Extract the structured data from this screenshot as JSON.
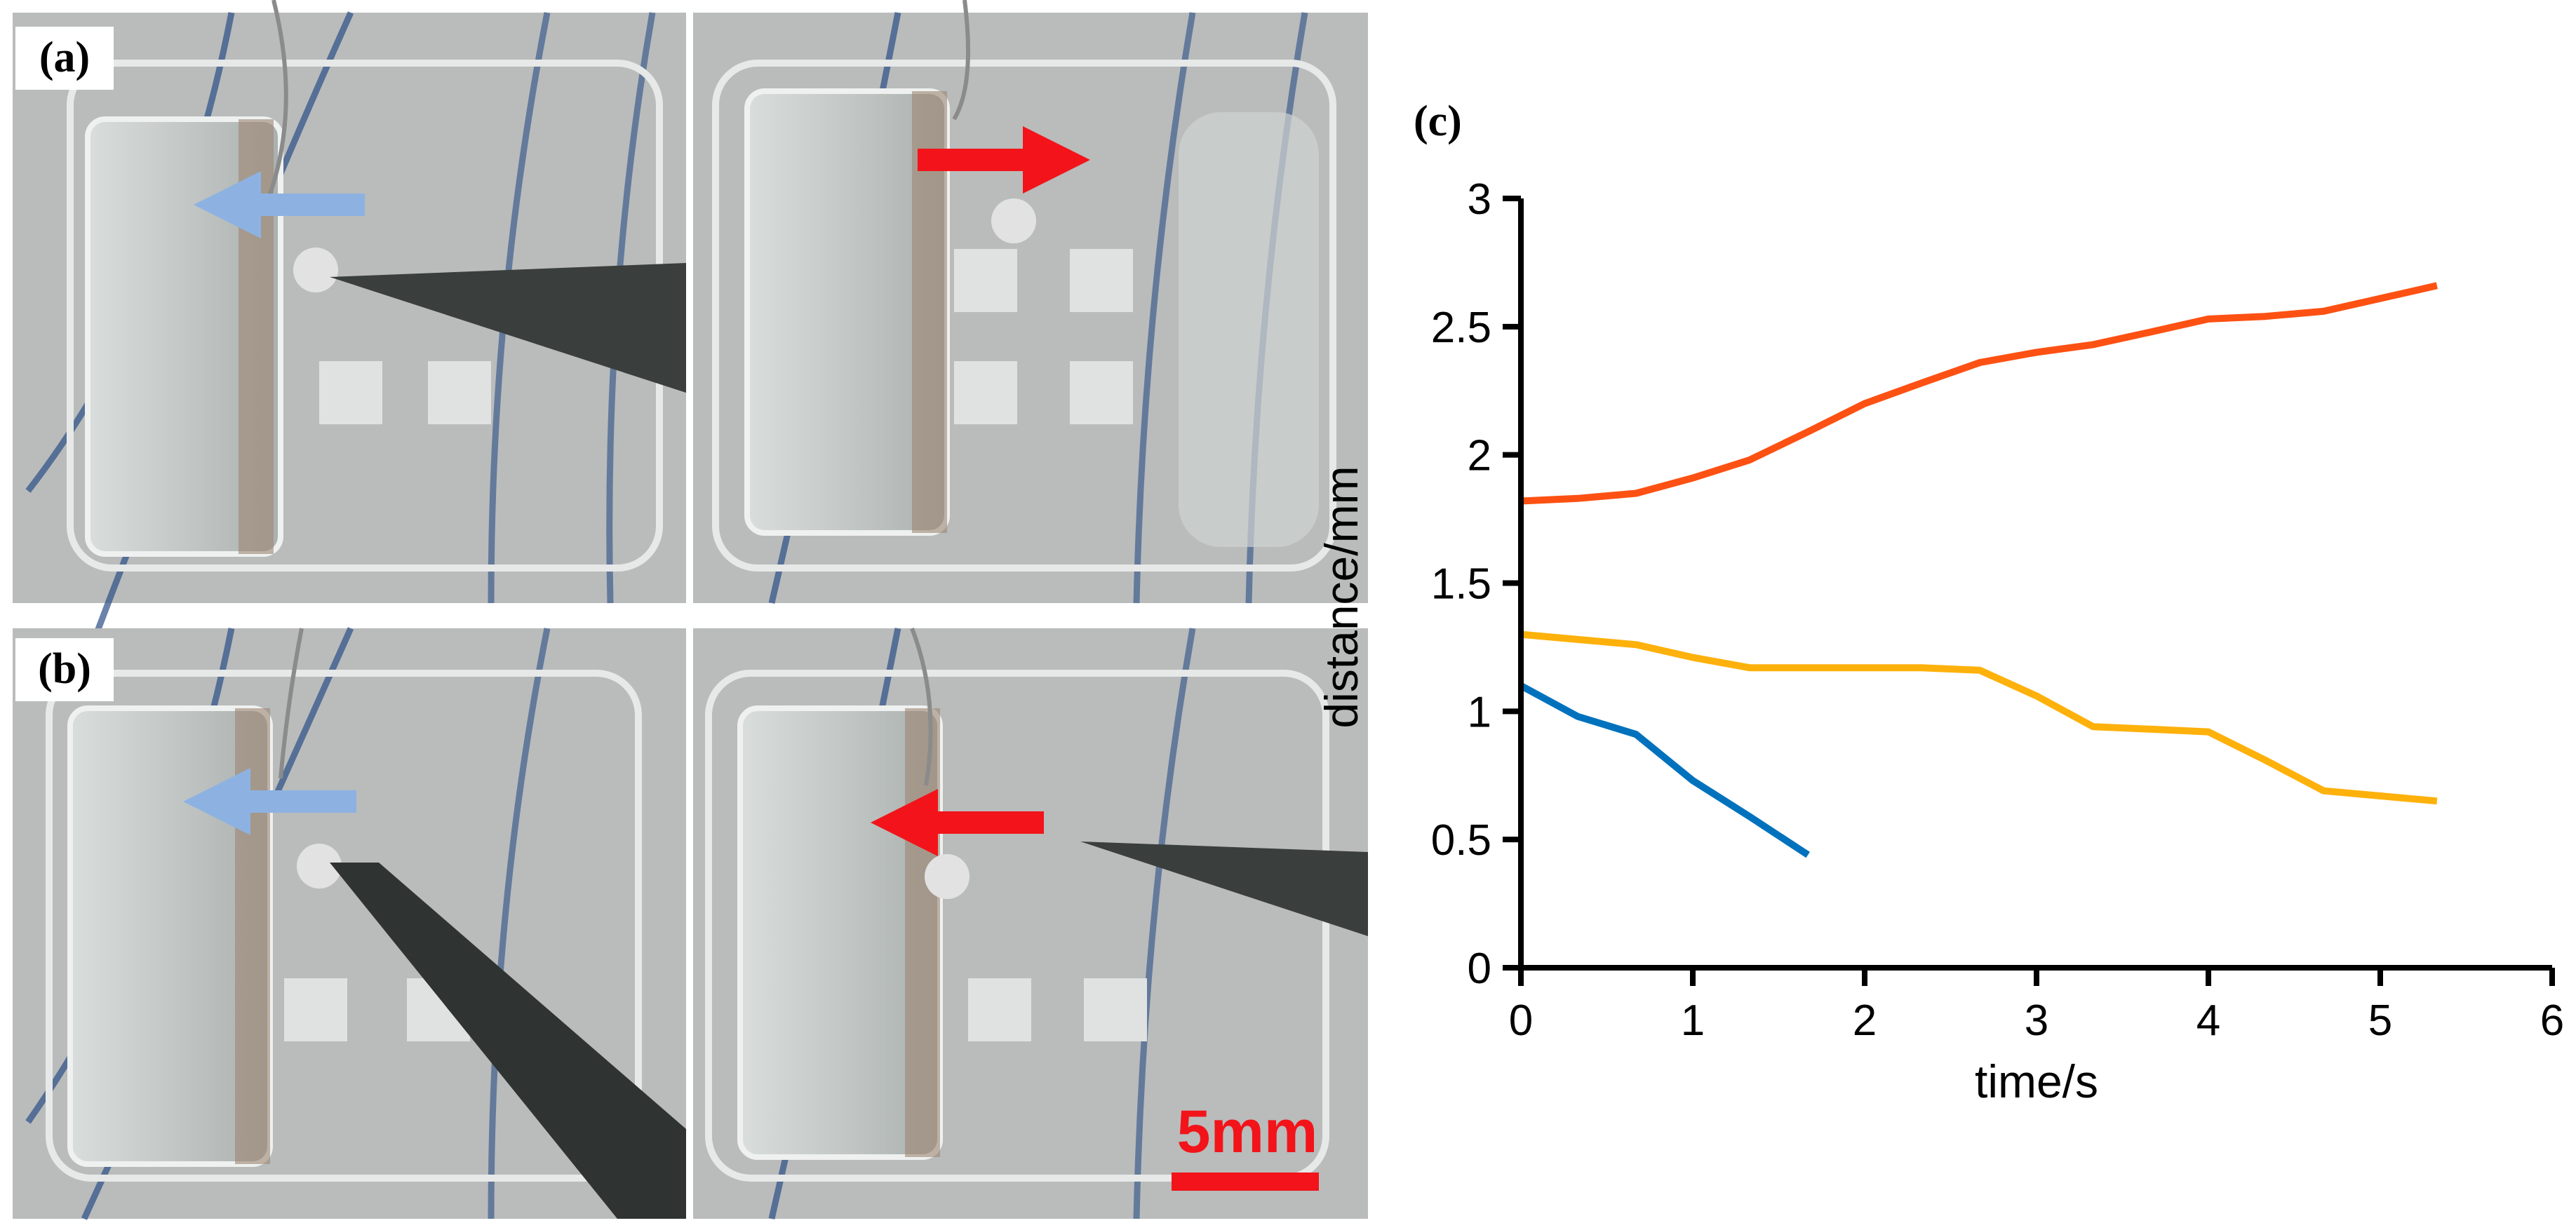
{
  "panels": {
    "a": "(a)",
    "b": "(b)",
    "c": "(c)"
  },
  "scale_bar": {
    "label": "5mm"
  },
  "colors": {
    "photo_bg": "#b9bcbb",
    "arrow_blue": "#8db2e2",
    "arrow_red": "#f2141a",
    "scale_red": "#f2141a"
  },
  "chart_data": {
    "type": "line",
    "xlabel": "time/s",
    "ylabel": "distance/mm",
    "xlim": [
      0,
      6
    ],
    "ylim": [
      0,
      3
    ],
    "xticks": [
      "0",
      "1",
      "2",
      "3",
      "4",
      "5",
      "6"
    ],
    "yticks": [
      "0",
      "0.5",
      "1",
      "1.5",
      "2",
      "2.5",
      "3"
    ],
    "grid": false,
    "series": [
      {
        "color": "#fd5113",
        "x": [
          0,
          0.33,
          0.67,
          1.0,
          1.33,
          1.67,
          2.0,
          2.33,
          2.67,
          3.0,
          3.33,
          3.67,
          4.0,
          4.33,
          4.67,
          5.0,
          5.33
        ],
        "y": [
          1.82,
          1.83,
          1.85,
          1.91,
          1.98,
          2.09,
          2.2,
          2.28,
          2.36,
          2.4,
          2.43,
          2.48,
          2.53,
          2.54,
          2.56,
          2.61,
          2.66
        ]
      },
      {
        "color": "#feb10b",
        "x": [
          0,
          0.33,
          0.67,
          1.0,
          1.33,
          1.67,
          2.0,
          2.33,
          2.67,
          3.0,
          3.33,
          3.67,
          4.0,
          4.33,
          4.67,
          5.0,
          5.33
        ],
        "y": [
          1.3,
          1.28,
          1.26,
          1.21,
          1.17,
          1.17,
          1.17,
          1.17,
          1.16,
          1.06,
          0.94,
          0.93,
          0.92,
          0.81,
          0.69,
          0.67,
          0.65
        ]
      },
      {
        "color": "#0072bd",
        "x": [
          0,
          0.33,
          0.67,
          1.0,
          1.33,
          1.67
        ],
        "y": [
          1.1,
          0.98,
          0.91,
          0.73,
          0.59,
          0.44
        ]
      }
    ]
  }
}
